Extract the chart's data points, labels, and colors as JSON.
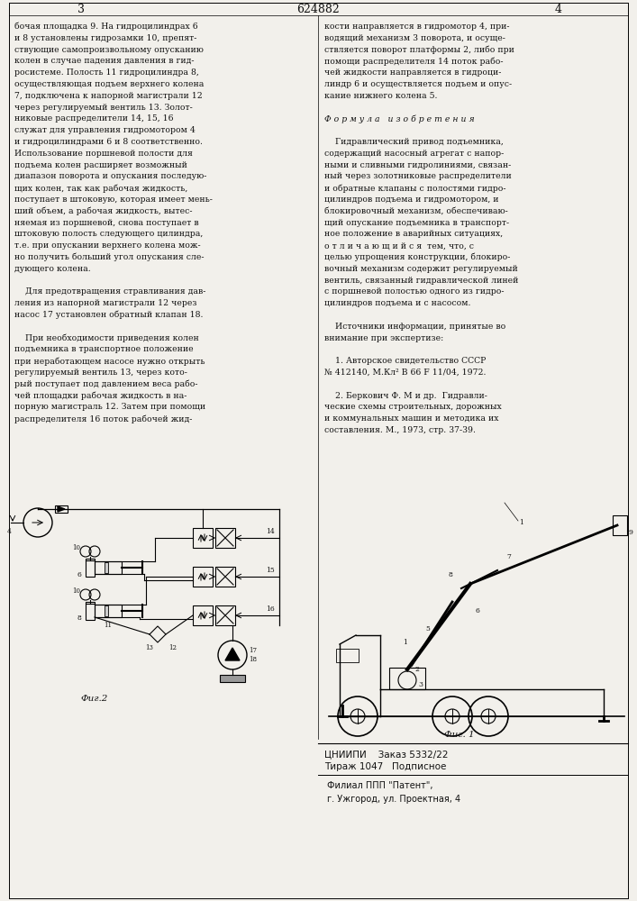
{
  "title": "624882",
  "page_left": "3",
  "page_right": "4",
  "bg_color": "#f2f0eb",
  "text_color": "#111111",
  "col1_text": [
    "бочая площадка 9. На гидроцилиндрах 6",
    "и 8 установлены гидрозамки 10, препят-",
    "ствующие самопроизвольному опусканию",
    "колен в случае падения давления в гид-",
    "росистеме. Полость 11 гидроцилиндра 8,",
    "осуществляющая подъем верхнего колена",
    "7, подключена к напорной магистрали 12",
    "через регулируемый вентиль 13. Золот-",
    "никовые распределители 14, 15, 16",
    "служат для управления гидромотором 4",
    "и гидроцилиндрами 6 и 8 соответственно.",
    "Использование поршневой полости для",
    "подъема колен расширяет возможный",
    "диапазон поворота и опускания последую-",
    "щих колен, так как рабочая жидкость,",
    "поступает в штоковую, которая имеет мень-",
    "ший объем, а рабочая жидкость, вытес-",
    "няемая из поршневой, снова поступает в",
    "штоковую полость следующего цилиндра,",
    "т.е. при опускании верхнего колена мож-",
    "но получить больший угол опускания сле-",
    "дующего колена.",
    "",
    "    Для предотвращения стравливания дав-",
    "ления из напорной магистрали 12 через",
    "насос 17 установлен обратный клапан 18.",
    "",
    "    При необходимости приведения колен",
    "подъемника в транспортное положение",
    "при неработающем насосе нужно открыть",
    "регулируемый вентиль 13, через кото-",
    "рый поступает под давлением веса рабо-",
    "чей площадки рабочая жидкость в на-",
    "порную магистраль 12. Затем при помощи",
    "распределителя 16 поток рабочей жид-"
  ],
  "col2_text": [
    "кости направляется в гидромотор 4, при-",
    "водящий механизм 3 поворота, и осуще-",
    "ствляется поворот платформы 2, либо при",
    "помощи распределителя 14 поток рабо-",
    "чей жидкости направляется в гидроци-",
    "линдр 6 и осуществляется подъем и опус-",
    "кание нижнего колена 5.",
    "",
    "Ф о р м у л а   и з о б р е т е н и я",
    "",
    "    Гидравлический привод подъемника,",
    "содержащий насосный агрегат с напор-",
    "ными и сливными гидролиниями, связан-",
    "ный через золотниковые распределители",
    "и обратные клапаны с полостями гидро-",
    "цилиндров подъема и гидромотором, и",
    "блокировочный механизм, обеспечиваю-",
    "щий опускание подъемника в транспорт-",
    "ное положение в аварийных ситуациях,",
    "о т л и ч а ю щ и й с я  тем, что, с",
    "целью упрощения конструкции, блокиро-",
    "вочный механизм содержит регулируемый",
    "вентиль, связанный гидравлической линей",
    "с поршневой полостью одного из гидро-",
    "цилиндров подъема и с насосом.",
    "",
    "    Источники информации, принятые во",
    "внимание при экспертизе:",
    "",
    "    1. Авторское свидетельство СССР",
    "№ 412140, М.Кл² В 66 F 11/04, 1972.",
    "",
    "    2. Беркович Ф. М и др.  Гидравли-",
    "ческие схемы строительных, дорожных",
    "и коммунальных машин и методика их",
    "составления. М., 1973, стр. 37-39."
  ],
  "bottom_left_line1": "ЦНИИПИ    Заказ 5332/22",
  "bottom_left_line2": "Тираж 1047   Подписное",
  "bottom_right_line1": "Филиал ППП \"Патент\",",
  "bottom_right_line2": "г. Ужгород, ул. Проектная, 4",
  "fig1_label": "Фиг. 1",
  "fig2_label": "Фиг.2"
}
